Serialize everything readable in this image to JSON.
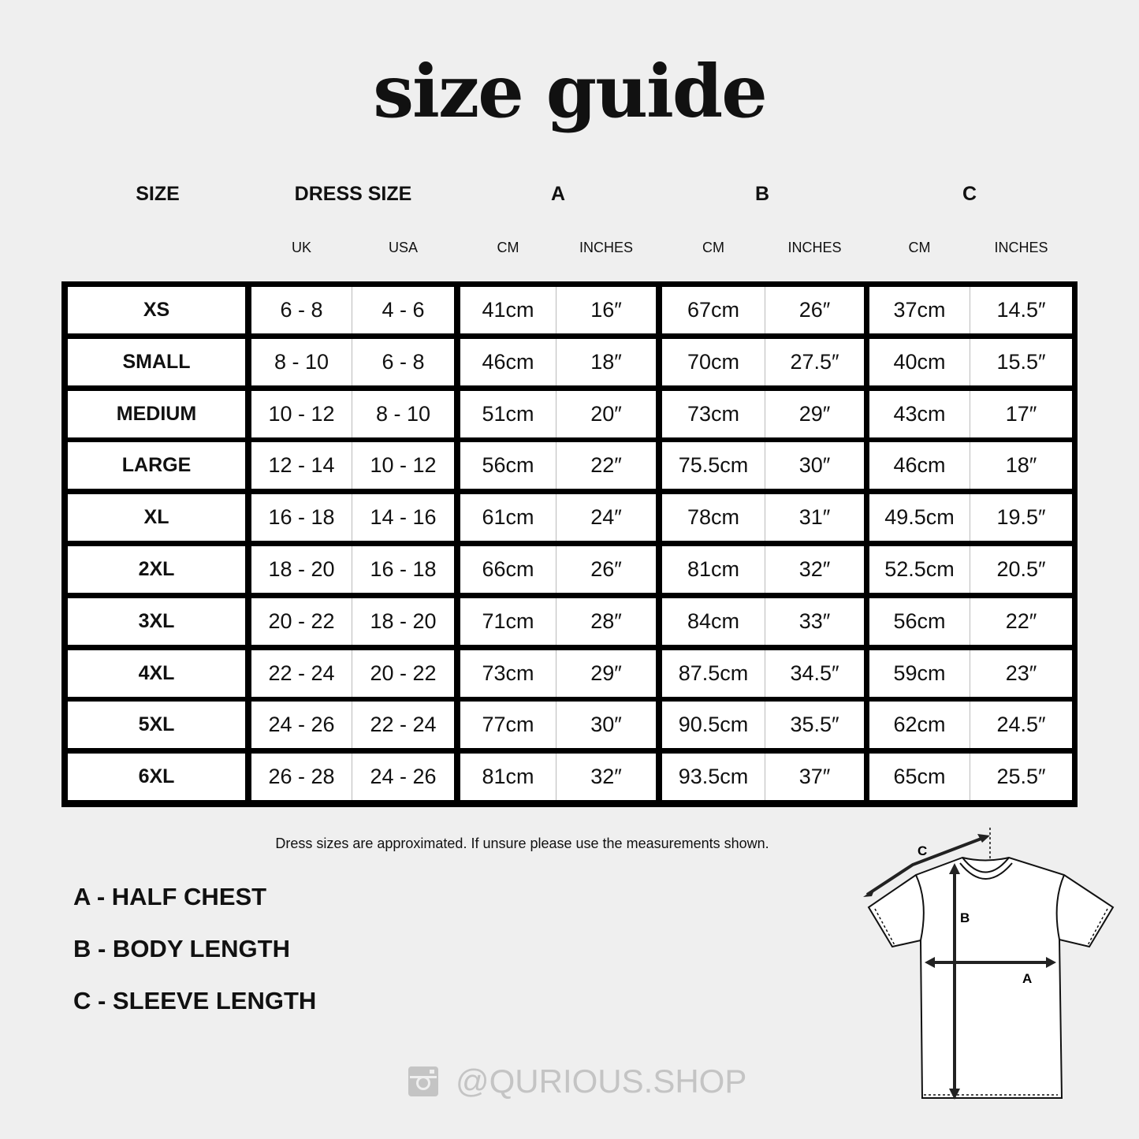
{
  "title": "size guide",
  "headers": {
    "size": "SIZE",
    "dress_size": "DRESS SIZE",
    "a": "A",
    "b": "B",
    "c": "C",
    "sub": [
      "UK",
      "USA",
      "CM",
      "INCHES",
      "CM",
      "INCHES",
      "CM",
      "INCHES"
    ]
  },
  "rows": [
    [
      "XS",
      "6 - 8",
      "4 - 6",
      "41cm",
      "16″",
      "67cm",
      "26″",
      "37cm",
      "14.5″"
    ],
    [
      "SMALL",
      "8 - 10",
      "6 - 8",
      "46cm",
      "18″",
      "70cm",
      "27.5″",
      "40cm",
      "15.5″"
    ],
    [
      "MEDIUM",
      "10 - 12",
      "8 - 10",
      "51cm",
      "20″",
      "73cm",
      "29″",
      "43cm",
      "17″"
    ],
    [
      "LARGE",
      "12 - 14",
      "10 - 12",
      "56cm",
      "22″",
      "75.5cm",
      "30″",
      "46cm",
      "18″"
    ],
    [
      "XL",
      "16 - 18",
      "14 - 16",
      "61cm",
      "24″",
      "78cm",
      "31″",
      "49.5cm",
      "19.5″"
    ],
    [
      "2XL",
      "18 - 20",
      "16 - 18",
      "66cm",
      "26″",
      "81cm",
      "32″",
      "52.5cm",
      "20.5″"
    ],
    [
      "3XL",
      "20 - 22",
      "18 - 20",
      "71cm",
      "28″",
      "84cm",
      "33″",
      "56cm",
      "22″"
    ],
    [
      "4XL",
      "22 - 24",
      "20 - 22",
      "73cm",
      "29″",
      "87.5cm",
      "34.5″",
      "59cm",
      "23″"
    ],
    [
      "5XL",
      "24 - 26",
      "22 - 24",
      "77cm",
      "30″",
      "90.5cm",
      "35.5″",
      "62cm",
      "24.5″"
    ],
    [
      "6XL",
      "26 - 28",
      "24 - 26",
      "81cm",
      "32″",
      "93.5cm",
      "37″",
      "65cm",
      "25.5″"
    ]
  ],
  "note": "Dress sizes are approximated. If unsure please use the measurements shown.",
  "legend": [
    "A - HALF CHEST",
    "B - BODY LENGTH",
    "C - SLEEVE LENGTH"
  ],
  "diagram_labels": {
    "a": "A",
    "b": "B",
    "c": "C"
  },
  "footer": {
    "icon": "instagram-icon",
    "handle": "@QURIOUS.SHOP"
  },
  "colors": {
    "background": "#efefef",
    "border": "#000000",
    "footer": "#c4c4c4"
  }
}
